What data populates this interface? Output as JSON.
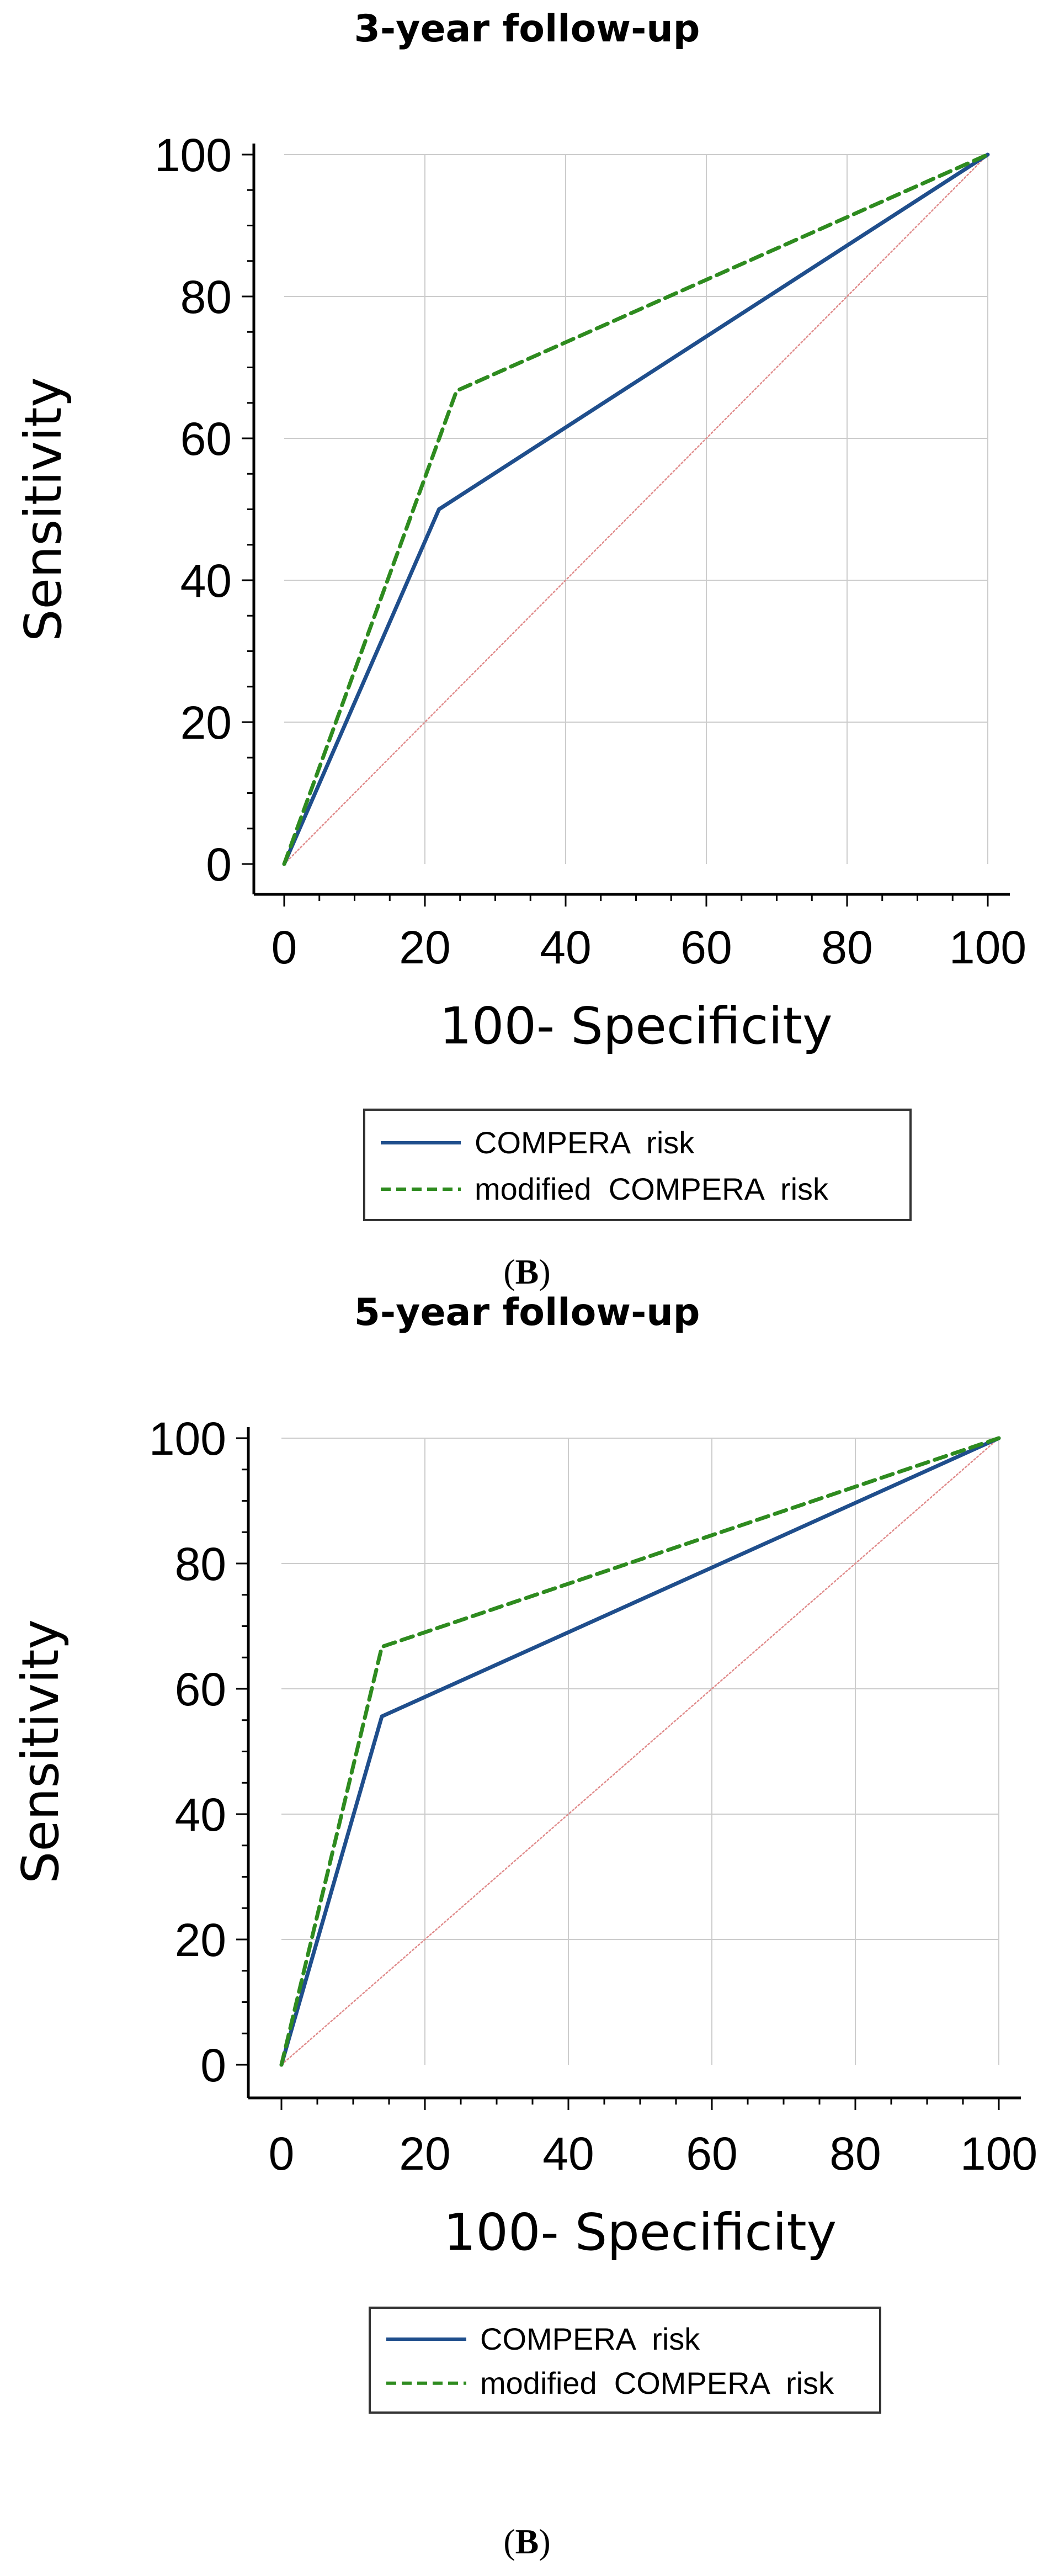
{
  "colors": {
    "compera": "#1f4e8c",
    "modified": "#2e8b1f",
    "reference": "#e08a8a",
    "grid": "#cccccc",
    "axis": "#000000"
  },
  "chart_data": [
    {
      "type": "line",
      "panel_label": "B",
      "panel_open": "(",
      "panel_close": ")",
      "title": "3-year follow-up",
      "xlabel": "100- Specificity",
      "ylabel": "Sensitivity",
      "xlim": [
        0,
        100
      ],
      "ylim": [
        0,
        100
      ],
      "xticks": [
        "0",
        "20",
        "40",
        "60",
        "80",
        "100"
      ],
      "yticks": [
        "0",
        "20",
        "40",
        "60",
        "80",
        "100"
      ],
      "grid": true,
      "legend": {
        "placement": "bottom",
        "entries": [
          "COMPERA  risk",
          "modified  COMPERA  risk"
        ]
      },
      "series": [
        {
          "name": "COMPERA  risk",
          "style": "solid",
          "x": [
            0,
            22,
            100
          ],
          "y": [
            0,
            50,
            100
          ]
        },
        {
          "name": "modified  COMPERA  risk",
          "style": "dashed",
          "x": [
            0,
            24.5,
            100
          ],
          "y": [
            0,
            66.7,
            100
          ]
        },
        {
          "name": "reference",
          "style": "dotted",
          "x": [
            0,
            100
          ],
          "y": [
            0,
            100
          ]
        }
      ]
    },
    {
      "type": "line",
      "panel_label": "B",
      "panel_open": "(",
      "panel_close": ")",
      "title": "5-year follow-up",
      "xlabel": "100- Specificity",
      "ylabel": "Sensitivity",
      "xlim": [
        0,
        100
      ],
      "ylim": [
        0,
        100
      ],
      "xticks": [
        "0",
        "20",
        "40",
        "60",
        "80",
        "100"
      ],
      "yticks": [
        "0",
        "20",
        "40",
        "60",
        "80",
        "100"
      ],
      "grid": true,
      "legend": {
        "placement": "bottom",
        "entries": [
          "COMPERA  risk",
          "modified  COMPERA  risk"
        ]
      },
      "series": [
        {
          "name": "COMPERA  risk",
          "style": "solid",
          "x": [
            0,
            14,
            100
          ],
          "y": [
            0,
            55.6,
            100
          ]
        },
        {
          "name": "modified  COMPERA  risk",
          "style": "dashed",
          "x": [
            0,
            14,
            100
          ],
          "y": [
            0,
            66.7,
            100
          ]
        },
        {
          "name": "reference",
          "style": "dotted",
          "x": [
            0,
            100
          ],
          "y": [
            0,
            100
          ]
        }
      ]
    }
  ]
}
